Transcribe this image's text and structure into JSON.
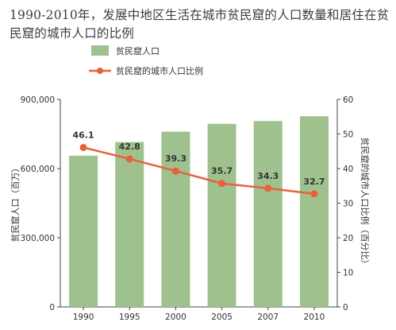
{
  "chart_data": {
    "type": "bar+line",
    "title": "1990-2010年，发展中地区生活在城市贫民窟的人口数量和居住在贫民窟的城市人口的比例",
    "categories": [
      "1990",
      "1995",
      "2000",
      "2005",
      "2007",
      "2010"
    ],
    "series": [
      {
        "name": "贫民窟人口",
        "type": "bar",
        "axis": "left",
        "color": "#9fc18d",
        "values": [
          656000,
          715000,
          760000,
          794000,
          806000,
          827000
        ]
      },
      {
        "name": "贫民窟的城市人口比例",
        "type": "line",
        "axis": "right",
        "color": "#e8603c",
        "values": [
          46.1,
          42.8,
          39.3,
          35.7,
          34.3,
          32.7
        ],
        "labels": [
          "46.1",
          "42.8",
          "39.3",
          "35.7",
          "34.3",
          "32.7"
        ]
      }
    ],
    "y_left": {
      "label": "贫民窟人口（百万）",
      "range": [
        0,
        900000
      ],
      "ticks": [
        0,
        300000,
        600000,
        900000
      ],
      "tick_labels": [
        "0",
        "300,000",
        "600,000",
        "900,000"
      ]
    },
    "y_right": {
      "label": "贫民窟的城市人口比例（百分比）",
      "range": [
        0,
        60
      ],
      "ticks": [
        0,
        10,
        20,
        30,
        40,
        50,
        60
      ],
      "tick_labels": [
        "0",
        "10",
        "20",
        "30",
        "40",
        "50",
        "60"
      ]
    },
    "legend_position": "top-left",
    "grid": false
  }
}
